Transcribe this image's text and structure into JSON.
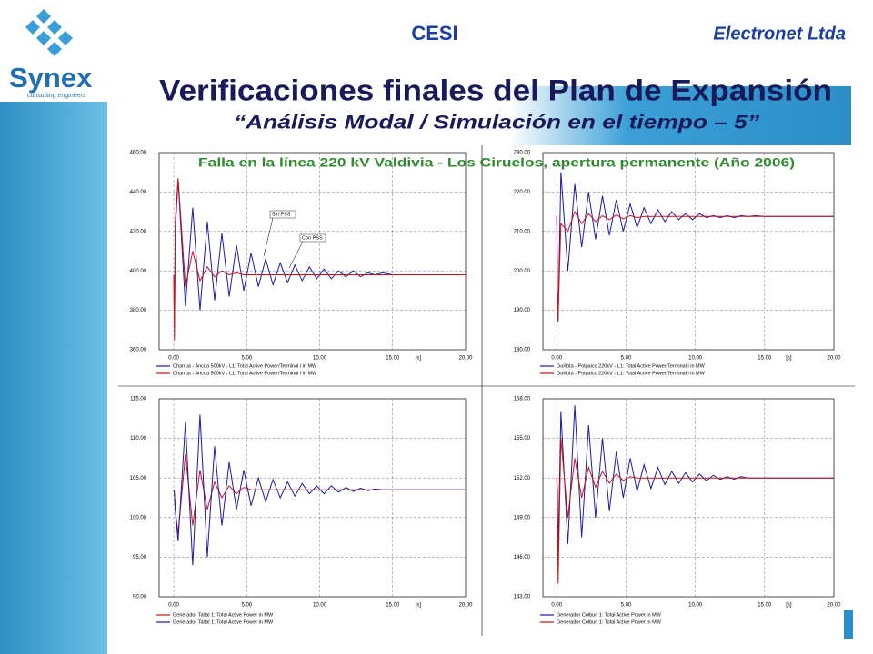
{
  "slide": {
    "logo": "Synex",
    "logo_tagline": "consulting engineers",
    "left_header": "CESI",
    "right_header": "Electronet Ltda",
    "title": "Verificaciones finales del Plan de Expansión",
    "subtitle": "“Análisis Modal / Simulación en el tiempo – 5”",
    "caption": "Falla en la línea 220 kV Valdivia - Los Ciruelos, apertura permanente (Año 2006)"
  },
  "chart_data": [
    {
      "type": "line",
      "x_label": "[s]",
      "x": [
        0,
        0.05,
        0.1,
        0.3,
        0.8,
        1.3,
        1.8,
        2.3,
        2.8,
        3.3,
        3.8,
        4.3,
        4.8,
        5.3,
        5.8,
        6.3,
        6.8,
        7.3,
        7.8,
        8.3,
        8.8,
        9.3,
        9.8,
        10.3,
        10.8,
        11.3,
        11.8,
        12.3,
        12.8,
        13.3,
        13.8,
        14.3,
        15,
        16,
        17,
        18,
        19,
        20
      ],
      "xlim": [
        -1,
        20
      ],
      "ylim": [
        360,
        460
      ],
      "xticks": [
        {
          "value": 0,
          "label": "0.00"
        },
        {
          "value": 5,
          "label": "5.00"
        },
        {
          "value": 10,
          "label": "10.00"
        },
        {
          "value": 15,
          "label": "15.00"
        },
        {
          "value": 20,
          "label": "20.00"
        }
      ],
      "yticks": [
        {
          "value": 360,
          "label": "360.00"
        },
        {
          "value": 380,
          "label": "380.00"
        },
        {
          "value": 400,
          "label": "400.00"
        },
        {
          "value": 420,
          "label": "420.00"
        },
        {
          "value": 440,
          "label": "440.00"
        },
        {
          "value": 460,
          "label": "460.00"
        }
      ],
      "grid": true,
      "annotations": [
        "Sin PSS",
        "Con PSS"
      ],
      "series": [
        {
          "name": "Charrua - Ancoa 500kV - L1: Total Active Power/Terminal i in MW",
          "color": "#1a1aa8",
          "values": [
            398,
            372,
            420,
            446,
            382,
            432,
            380,
            425,
            385,
            419,
            387,
            413,
            390,
            409,
            392,
            406,
            393,
            404,
            394,
            403,
            395,
            402,
            396,
            401,
            396,
            400,
            397,
            400,
            397,
            399,
            398,
            399,
            398,
            398,
            398,
            398,
            398,
            398
          ]
        },
        {
          "name": "Charrua - Ancoa 500kV - L1: Total Active Power/Terminal i in MW",
          "color": "#d01010",
          "values": [
            398,
            365,
            425,
            447,
            392,
            410,
            395,
            402,
            397,
            400,
            398,
            399,
            398,
            398,
            398,
            398,
            398,
            398,
            398,
            398,
            398,
            398,
            398,
            398,
            398,
            398,
            398,
            398,
            398,
            398,
            398,
            398,
            398,
            398,
            398,
            398,
            398,
            398
          ]
        }
      ]
    },
    {
      "type": "line",
      "x_label": "[s]",
      "x": [
        0,
        0.05,
        0.1,
        0.3,
        0.8,
        1.3,
        1.8,
        2.3,
        2.8,
        3.3,
        3.8,
        4.3,
        4.8,
        5.3,
        5.8,
        6.3,
        6.8,
        7.3,
        7.8,
        8.3,
        8.8,
        9.3,
        9.8,
        10.3,
        10.8,
        11.3,
        11.8,
        12.3,
        12.8,
        13.3,
        13.8,
        14.3,
        15,
        16,
        17,
        18,
        19,
        20
      ],
      "xlim": [
        -1,
        20
      ],
      "ylim": [
        180,
        230
      ],
      "xticks": [
        {
          "value": 0,
          "label": "0.00"
        },
        {
          "value": 5,
          "label": "5.00"
        },
        {
          "value": 10,
          "label": "10.00"
        },
        {
          "value": 15,
          "label": "15.00"
        },
        {
          "value": 20,
          "label": "20.00"
        }
      ],
      "yticks": [
        {
          "value": 180,
          "label": "180.00"
        },
        {
          "value": 190,
          "label": "190.00"
        },
        {
          "value": 200,
          "label": "200.00"
        },
        {
          "value": 210,
          "label": "210.00"
        },
        {
          "value": 220,
          "label": "220.00"
        },
        {
          "value": 230,
          "label": "230.00"
        }
      ],
      "grid": true,
      "series": [
        {
          "name": "Guillota - Polpaico 220kV - L1: Total Active Power/Terminal i in MW",
          "color": "#1a1aa8",
          "values": [
            214,
            195,
            187,
            225,
            200,
            222,
            206,
            220,
            208,
            219,
            209,
            218,
            210,
            217,
            211,
            216,
            212,
            215.5,
            212.5,
            215,
            213,
            214.5,
            213,
            214.5,
            213.5,
            214,
            213.5,
            214,
            213.5,
            214,
            213.8,
            214,
            213.8,
            213.8,
            213.8,
            213.8,
            213.8,
            213.8
          ]
        },
        {
          "name": "Guillota - Polpaico 220kV - L1: Total Active Power/Terminal i in MW",
          "color": "#d01010",
          "values": [
            214,
            196,
            188,
            212,
            210,
            215,
            212,
            214.5,
            212.5,
            214,
            213,
            214.2,
            213.2,
            214,
            213.5,
            213.8,
            213.8,
            213.8,
            213.8,
            213.8,
            213.8,
            213.8,
            213.8,
            213.8,
            213.8,
            213.8,
            213.8,
            213.8,
            213.8,
            213.8,
            213.8,
            213.8,
            213.8,
            213.8,
            213.8,
            213.8,
            213.8,
            213.8
          ]
        }
      ]
    },
    {
      "type": "line",
      "x_label": "[s]",
      "x": [
        0,
        0.05,
        0.1,
        0.3,
        0.8,
        1.3,
        1.8,
        2.3,
        2.8,
        3.3,
        3.8,
        4.3,
        4.8,
        5.3,
        5.8,
        6.3,
        6.8,
        7.3,
        7.8,
        8.3,
        8.8,
        9.3,
        9.8,
        10.3,
        10.8,
        11.3,
        11.8,
        12.3,
        12.8,
        13.3,
        13.8,
        14.3,
        15,
        16,
        17,
        18,
        19,
        20
      ],
      "xlim": [
        -1,
        20
      ],
      "ylim": [
        90,
        115
      ],
      "xticks": [
        {
          "value": 0,
          "label": "0.00"
        },
        {
          "value": 5,
          "label": "5.00"
        },
        {
          "value": 10,
          "label": "10.00"
        },
        {
          "value": 15,
          "label": "15.00"
        },
        {
          "value": 20,
          "label": "20.00"
        }
      ],
      "yticks": [
        {
          "value": 90,
          "label": "90.00"
        },
        {
          "value": 95,
          "label": "95.00"
        },
        {
          "value": 100,
          "label": "100.00"
        },
        {
          "value": 105,
          "label": "105.00"
        },
        {
          "value": 110,
          "label": "110.00"
        },
        {
          "value": 115,
          "label": "115.00"
        }
      ],
      "grid": true,
      "series": [
        {
          "name": "Generador Taltal 1: Total Active Power in MW",
          "color": "#d01010",
          "values": [
            103.5,
            103,
            101,
            98,
            108,
            99,
            106,
            101,
            104.5,
            102.5,
            104,
            103,
            103.8,
            103.5,
            103.5,
            103.5,
            103.5,
            103.5,
            103.5,
            103.5,
            103.5,
            103.5,
            103.5,
            103.5,
            103.5,
            103.5,
            103.5,
            103.5,
            103.5,
            103.5,
            103.5,
            103.5,
            103.5,
            103.5,
            103.5,
            103.5,
            103.5,
            103.5
          ]
        },
        {
          "name": "Generador Taltal 1: Total Active Power in MW",
          "color": "#1a1aa8",
          "values": [
            103.5,
            103,
            101,
            97,
            112,
            94,
            113,
            95,
            109,
            99,
            107,
            101,
            106,
            101.5,
            105,
            102,
            104.8,
            102.5,
            104.5,
            102.7,
            104.3,
            103,
            104,
            103,
            104,
            103.2,
            103.8,
            103.3,
            103.7,
            103.4,
            103.6,
            103.5,
            103.5,
            103.5,
            103.5,
            103.5,
            103.5,
            103.5
          ]
        }
      ]
    },
    {
      "type": "line",
      "x_label": "[s]",
      "x": [
        0,
        0.05,
        0.1,
        0.3,
        0.8,
        1.3,
        1.8,
        2.3,
        2.8,
        3.3,
        3.8,
        4.3,
        4.8,
        5.3,
        5.8,
        6.3,
        6.8,
        7.3,
        7.8,
        8.3,
        8.8,
        9.3,
        9.8,
        10.3,
        10.8,
        11.3,
        11.8,
        12.3,
        12.8,
        13.3,
        13.8,
        14.3,
        15,
        16,
        17,
        18,
        19,
        20
      ],
      "xlim": [
        -1,
        20
      ],
      "ylim": [
        143,
        158
      ],
      "xticks": [
        {
          "value": 0,
          "label": "0.00"
        },
        {
          "value": 5,
          "label": "5.00"
        },
        {
          "value": 10,
          "label": "10.00"
        },
        {
          "value": 15,
          "label": "15.00"
        },
        {
          "value": 20,
          "label": "20.00"
        }
      ],
      "yticks": [
        {
          "value": 143,
          "label": "143.00"
        },
        {
          "value": 146,
          "label": "146.00"
        },
        {
          "value": 149,
          "label": "149.00"
        },
        {
          "value": 152,
          "label": "152.00"
        },
        {
          "value": 155,
          "label": "155.00"
        },
        {
          "value": 158,
          "label": "158.00"
        }
      ],
      "grid": true,
      "series": [
        {
          "name": "Generador Colbun 1: Total Active Power in MW",
          "color": "#1a1aa8",
          "values": [
            152,
            151,
            146,
            157,
            147,
            157.5,
            147.5,
            156,
            149,
            155,
            149.5,
            154,
            150.5,
            153.5,
            151,
            153,
            151.2,
            152.8,
            151.5,
            152.5,
            151.6,
            152.4,
            151.7,
            152.3,
            151.8,
            152.2,
            151.9,
            152.1,
            151.9,
            152.1,
            152,
            152,
            152,
            152,
            152,
            152,
            152,
            152
          ]
        },
        {
          "name": "Generador Colbun 1: Total Active Power in MW",
          "color": "#d01010",
          "values": [
            152,
            150,
            144,
            155,
            149,
            153.5,
            150.5,
            152.8,
            151.3,
            152.5,
            151.6,
            152.3,
            151.8,
            152.1,
            152,
            152,
            152,
            152,
            152,
            152,
            152,
            152,
            152,
            152,
            152,
            152,
            152,
            152,
            152,
            152,
            152,
            152,
            152,
            152,
            152,
            152,
            152,
            152
          ]
        }
      ]
    }
  ]
}
